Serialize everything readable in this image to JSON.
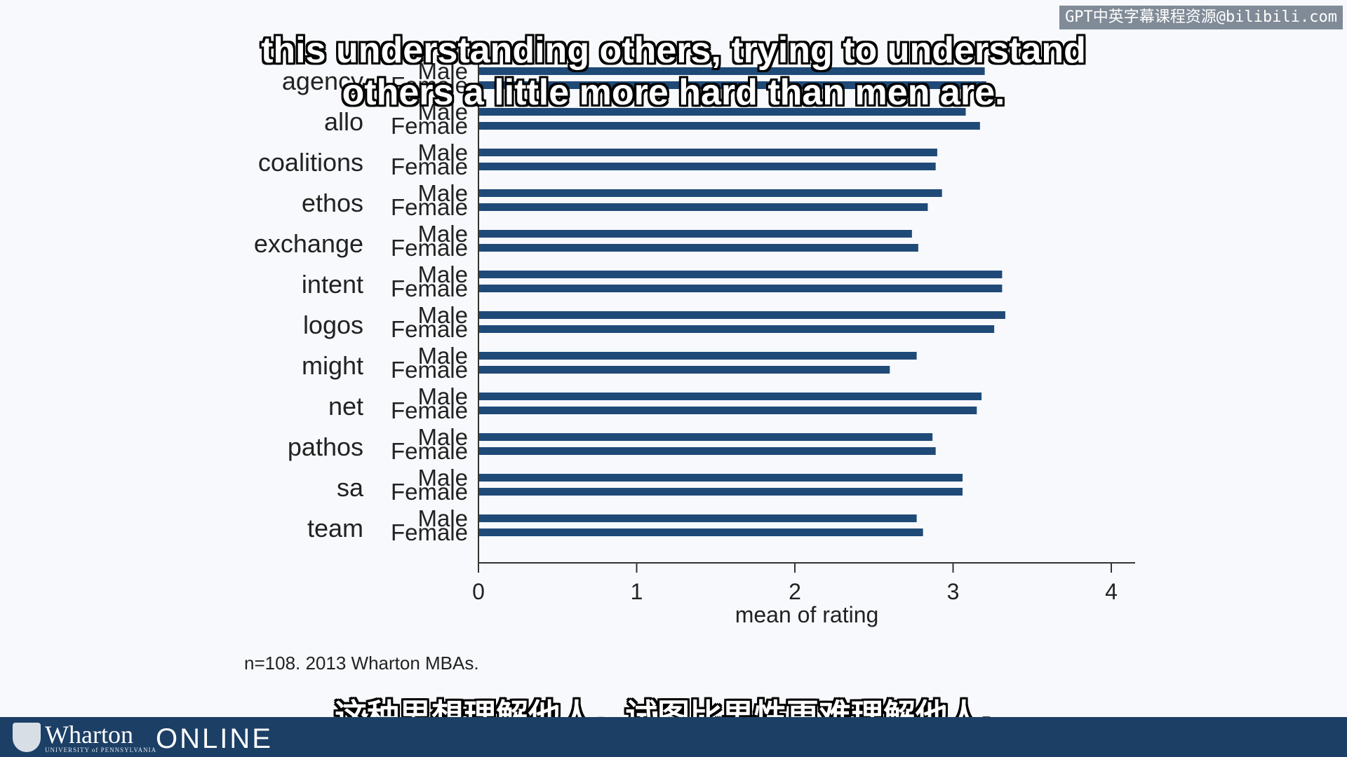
{
  "watermark": "GPT中英字幕课程资源@bilibili.com",
  "subtitles": {
    "en_line1": "this understanding others, trying to understand",
    "en_line2": "others a little more hard than men are.",
    "zh": "这种思想理解他人，试图比男性更难理解他人。"
  },
  "note": "n=108. 2013 Wharton MBAs.",
  "footer": {
    "brand": "Wharton",
    "brand_sub": "UNIVERSITY of PENNSYLVANIA",
    "online": "ONLINE"
  },
  "colors": {
    "bar": "#1f4a78",
    "footer": "#1c3f66"
  },
  "chart_data": {
    "type": "bar",
    "orientation": "horizontal",
    "categories": [
      "agency",
      "allo",
      "coalitions",
      "ethos",
      "exchange",
      "intent",
      "logos",
      "might",
      "net",
      "pathos",
      "sa",
      "team"
    ],
    "groups": [
      "Male",
      "Female"
    ],
    "series": [
      {
        "name": "Male",
        "values": [
          3.2,
          3.08,
          2.9,
          2.93,
          2.74,
          3.31,
          3.33,
          2.77,
          3.18,
          2.87,
          3.06,
          2.77
        ]
      },
      {
        "name": "Female",
        "values": [
          3.21,
          3.17,
          2.89,
          2.84,
          2.78,
          3.31,
          3.26,
          2.6,
          3.15,
          2.89,
          3.06,
          2.81
        ]
      }
    ],
    "xlabel": "mean of rating",
    "xticks": [
      0,
      1,
      2,
      3,
      4
    ],
    "xlim": [
      0,
      4.15
    ]
  }
}
